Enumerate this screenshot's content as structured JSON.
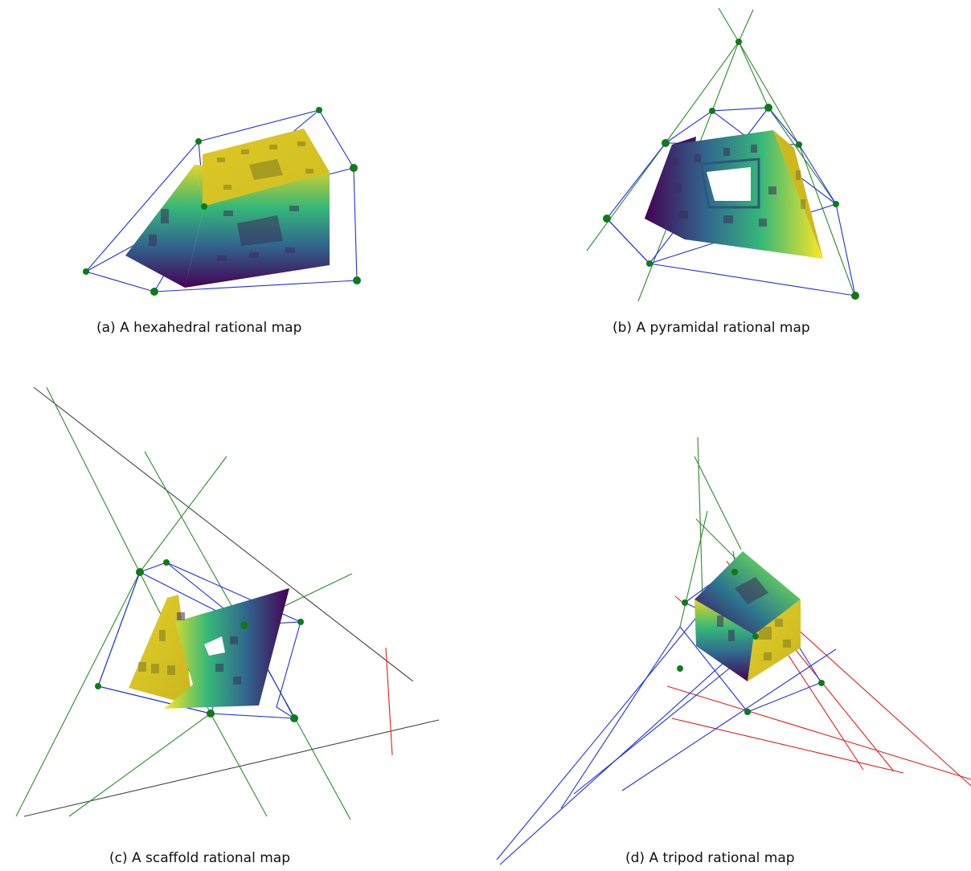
{
  "figure": {
    "panels": [
      {
        "id": "a",
        "caption": "(a) A hexahedral rational map",
        "map_type": "hexahedral"
      },
      {
        "id": "b",
        "caption": "(b) A pyramidal rational map",
        "map_type": "pyramidal"
      },
      {
        "id": "c",
        "caption": "(c) A scaffold rational map",
        "map_type": "scaffold"
      },
      {
        "id": "d",
        "caption": "(d) A tripod rational map",
        "map_type": "tripod"
      }
    ],
    "colors": {
      "control_net": "#1f2fe0",
      "auxiliary_lines": "#2e8b2e",
      "axis_lines_gray": "#444444",
      "axis_lines_red": "#e02020",
      "control_points": "#0f7a1a",
      "colormap": [
        "#440154",
        "#31688e",
        "#35b779",
        "#fde725"
      ]
    }
  }
}
